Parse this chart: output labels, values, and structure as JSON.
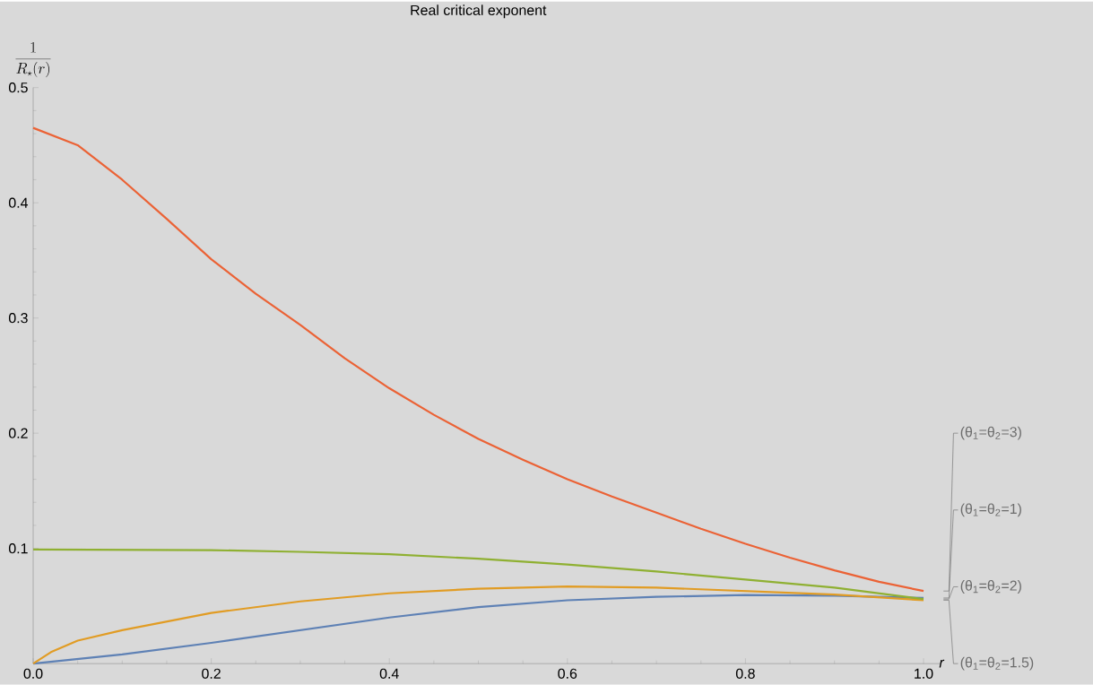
{
  "chart_data": {
    "type": "line",
    "title": "Real critical exponent",
    "xlabel": "r",
    "ylabel": "\\frac{1}{R_{\\star}(r)}",
    "xlim": [
      0,
      1.02
    ],
    "ylim": [
      0,
      0.5
    ],
    "xticks": [
      {
        "value": 0,
        "label": "0.0"
      },
      {
        "value": 0.2,
        "label": "0.2"
      },
      {
        "value": 0.4,
        "label": "0.4"
      },
      {
        "value": 0.6,
        "label": "0.6"
      },
      {
        "value": 0.8,
        "label": "0.8"
      },
      {
        "value": 1.0,
        "label": "1.0"
      }
    ],
    "yticks": [
      0.1,
      0.2,
      0.3,
      0.4,
      0.5
    ],
    "series": [
      {
        "name": "(θ$_{1}$=θ$_{2}$=1)",
        "color": "#5e81b5",
        "x": [
          0,
          0.1,
          0.2,
          0.3,
          0.4,
          0.5,
          0.6,
          0.7,
          0.8,
          0.9,
          1.0
        ],
        "values": [
          0,
          0.008,
          0.018,
          0.029,
          0.04,
          0.049,
          0.055,
          0.058,
          0.0595,
          0.059,
          0.057
        ]
      },
      {
        "name": "(θ$_{1}$=θ$_{2}$=1.5)",
        "color": "#e19c24",
        "x": [
          0,
          0.02,
          0.05,
          0.1,
          0.2,
          0.3,
          0.4,
          0.5,
          0.6,
          0.7,
          0.8,
          0.9,
          1.0
        ],
        "values": [
          0,
          0.01,
          0.02,
          0.029,
          0.044,
          0.054,
          0.061,
          0.065,
          0.067,
          0.066,
          0.063,
          0.06,
          0.055
        ]
      },
      {
        "name": "(θ$_{1}$=θ$_{2}$=2)",
        "color": "#8fb032",
        "x": [
          0,
          0.2,
          0.3,
          0.4,
          0.5,
          0.6,
          0.7,
          0.8,
          0.9,
          1.0
        ],
        "values": [
          0.099,
          0.0985,
          0.097,
          0.095,
          0.091,
          0.086,
          0.08,
          0.073,
          0.066,
          0.056
        ]
      },
      {
        "name": "(θ$_{1}$=θ$_{2}$=3)",
        "color": "#eb6235",
        "x": [
          0,
          0.05,
          0.1,
          0.15,
          0.2,
          0.25,
          0.3,
          0.35,
          0.4,
          0.45,
          0.5,
          0.55,
          0.6,
          0.65,
          0.7,
          0.75,
          0.8,
          0.85,
          0.9,
          0.95,
          1.0
        ],
        "values": [
          0.465,
          0.45,
          0.42,
          0.386,
          0.351,
          0.321,
          0.294,
          0.265,
          0.239,
          0.216,
          0.195,
          0.177,
          0.16,
          0.145,
          0.131,
          0.117,
          0.104,
          0.092,
          0.081,
          0.071,
          0.063
        ]
      }
    ]
  }
}
